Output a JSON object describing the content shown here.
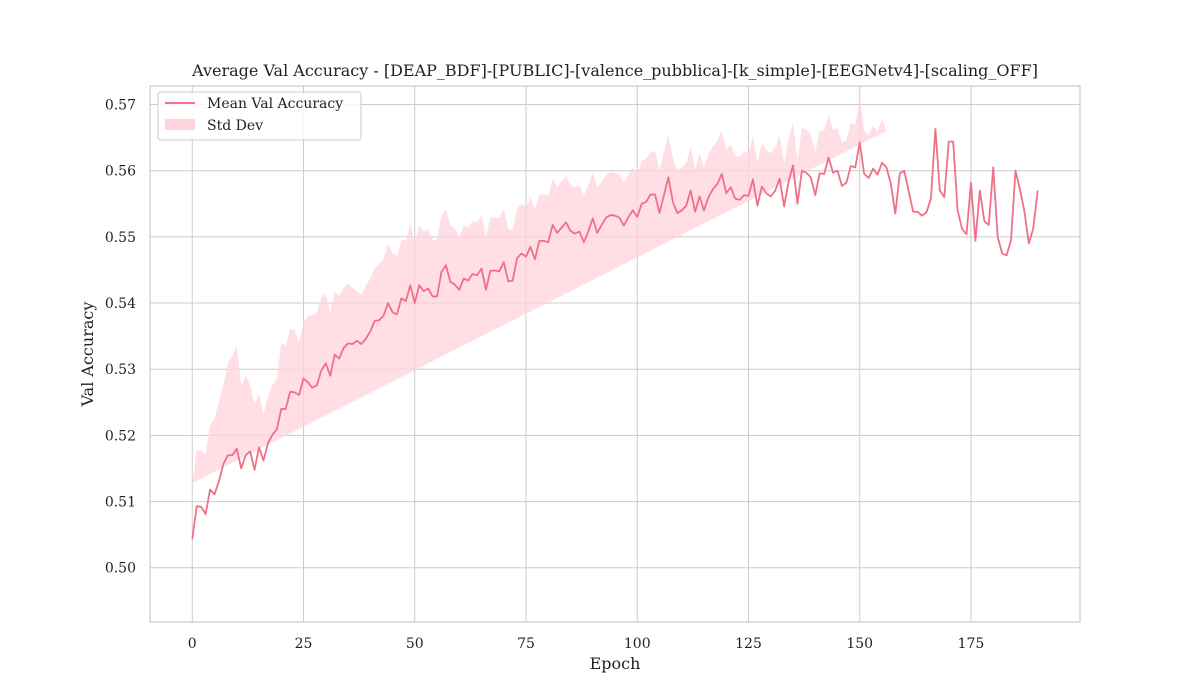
{
  "chart_data": {
    "type": "line",
    "title": "Average Val Accuracy - [DEAP_BDF]-[PUBLIC]-[valence_pubblica]-[k_simple]-[EEGNetv4]-[scaling_OFF]",
    "xlabel": "Epoch",
    "ylabel": "Val Accuracy",
    "xlim": [
      -9.5,
      199.5
    ],
    "ylim": [
      0.4918,
      0.5728
    ],
    "xticks": [
      0,
      25,
      50,
      75,
      100,
      125,
      150,
      175
    ],
    "yticks": [
      0.5,
      0.51,
      0.52,
      0.53,
      0.54,
      0.55,
      0.56,
      0.57
    ],
    "ytick_labels": [
      "0.50",
      "0.51",
      "0.52",
      "0.53",
      "0.54",
      "0.55",
      "0.56",
      "0.57"
    ],
    "grid": true,
    "legend_position": "top-left",
    "colors": {
      "line": "#f07088",
      "band": "#ffd4dc"
    },
    "series": [
      {
        "name": "Mean Val Accuracy",
        "kind": "line",
        "x": [
          0,
          1,
          2,
          3,
          4,
          5,
          6,
          7,
          8,
          9,
          10,
          11,
          12,
          13,
          14,
          15,
          16,
          17,
          18,
          19,
          20,
          21,
          22,
          23,
          24,
          25,
          26,
          27,
          28,
          29,
          30,
          31,
          32,
          33,
          34,
          35,
          36,
          37,
          38,
          39,
          40,
          41,
          42,
          43,
          44,
          45,
          46,
          47,
          48,
          49,
          50,
          51,
          52,
          53,
          54,
          55,
          56,
          57,
          58,
          59,
          60,
          61,
          62,
          63,
          64,
          65,
          66,
          67,
          68,
          69,
          70,
          71,
          72,
          73,
          74,
          75,
          76,
          77,
          78,
          79,
          80,
          81,
          82,
          83,
          84,
          85,
          86,
          87,
          88,
          89,
          90,
          91,
          92,
          93,
          94,
          95,
          96,
          97,
          98,
          99,
          100,
          101,
          102,
          103,
          104,
          105,
          106,
          107,
          108,
          109,
          110,
          111,
          112,
          113,
          114,
          115,
          116,
          117,
          118,
          119,
          120,
          121,
          122,
          123,
          124,
          125,
          126,
          127,
          128,
          129,
          130,
          131,
          132,
          133,
          134,
          135,
          136,
          137,
          138,
          139,
          140,
          141,
          142,
          143,
          144,
          145,
          146,
          147,
          148,
          149,
          150,
          151,
          152,
          153,
          154,
          155,
          156,
          157,
          158,
          159,
          160,
          161,
          162,
          163,
          164,
          165,
          166,
          167,
          168,
          169,
          170,
          171,
          172,
          173,
          174,
          175,
          176,
          177,
          178,
          179,
          180,
          181,
          182,
          183,
          184,
          185,
          186,
          187,
          188,
          189,
          190
        ],
        "y": [
          0.5043,
          0.5093,
          0.5092,
          0.5081,
          0.5118,
          0.5111,
          0.5131,
          0.5157,
          0.517,
          0.517,
          0.518,
          0.515,
          0.517,
          0.5176,
          0.5148,
          0.5182,
          0.5162,
          0.5188,
          0.5201,
          0.5209,
          0.524,
          0.524,
          0.5266,
          0.5265,
          0.5261,
          0.5286,
          0.528,
          0.5272,
          0.5276,
          0.5298,
          0.5309,
          0.529,
          0.5322,
          0.5316,
          0.5332,
          0.5339,
          0.5338,
          0.5343,
          0.5338,
          0.5346,
          0.5357,
          0.5373,
          0.5374,
          0.5381,
          0.54,
          0.5386,
          0.5383,
          0.5407,
          0.5403,
          0.5427,
          0.54,
          0.5427,
          0.5418,
          0.5422,
          0.541,
          0.541,
          0.5447,
          0.5457,
          0.5432,
          0.5428,
          0.542,
          0.5437,
          0.5434,
          0.5444,
          0.5442,
          0.5452,
          0.542,
          0.5449,
          0.5449,
          0.5448,
          0.5462,
          0.5433,
          0.5434,
          0.5468,
          0.5475,
          0.547,
          0.5485,
          0.5466,
          0.5494,
          0.5494,
          0.5492,
          0.5518,
          0.5506,
          0.5514,
          0.5522,
          0.5509,
          0.5505,
          0.5508,
          0.5492,
          0.5508,
          0.5528,
          0.5506,
          0.5518,
          0.5529,
          0.5533,
          0.5532,
          0.5529,
          0.5517,
          0.553,
          0.554,
          0.553,
          0.555,
          0.5553,
          0.5564,
          0.5564,
          0.5536,
          0.5563,
          0.559,
          0.5553,
          0.5536,
          0.554,
          0.5547,
          0.557,
          0.5538,
          0.5561,
          0.554,
          0.556,
          0.5572,
          0.558,
          0.5595,
          0.5566,
          0.5575,
          0.5558,
          0.5556,
          0.5563,
          0.5562,
          0.5587,
          0.5547,
          0.5576,
          0.5566,
          0.5561,
          0.557,
          0.5588,
          0.5546,
          0.5583,
          0.5608,
          0.555,
          0.56,
          0.5597,
          0.559,
          0.5563,
          0.5596,
          0.5595,
          0.562,
          0.5597,
          0.56,
          0.5577,
          0.5582,
          0.5607,
          0.5605,
          0.5643,
          0.5595,
          0.5589,
          0.5603,
          0.5594,
          0.5612,
          0.5605,
          0.558,
          0.5535,
          0.5596,
          0.56,
          0.5569,
          0.5538,
          0.5538,
          0.5532,
          0.5537,
          0.5558,
          0.5663,
          0.557,
          0.556,
          0.5644,
          0.5644,
          0.554,
          0.5512,
          0.5504,
          0.5582,
          0.5494,
          0.557,
          0.5524,
          0.5518,
          0.5605,
          0.55,
          0.5475,
          0.5472,
          0.5495,
          0.56,
          0.5572,
          0.5539,
          0.549,
          0.5513,
          0.557
        ]
      },
      {
        "name": "Std Dev",
        "kind": "band",
        "x_end": 158,
        "upper_offset": [
          0.0085,
          0.0085,
          0.0085,
          0.009,
          0.0098,
          0.0115,
          0.012,
          0.012,
          0.014,
          0.015,
          0.0155,
          0.0125,
          0.012,
          0.01,
          0.01,
          0.008,
          0.007,
          0.007,
          0.0075,
          0.0075,
          0.01,
          0.0095,
          0.0095,
          0.0095,
          0.008,
          0.0085,
          0.01,
          0.011,
          0.011,
          0.011,
          0.0105,
          0.0095,
          0.0095,
          0.0095,
          0.009,
          0.009,
          0.0085,
          0.0075,
          0.0075,
          0.008,
          0.008,
          0.008,
          0.0085,
          0.0085,
          0.009,
          0.009,
          0.0088,
          0.0088,
          0.0092,
          0.0092,
          0.009,
          0.009,
          0.009,
          0.009,
          0.0085,
          0.0085,
          0.0085,
          0.0085,
          0.0085,
          0.0085,
          0.008,
          0.008,
          0.008,
          0.008,
          0.008,
          0.008,
          0.008,
          0.008,
          0.008,
          0.008,
          0.008,
          0.008,
          0.0075,
          0.0075,
          0.0075,
          0.0075,
          0.0075,
          0.0075,
          0.007,
          0.007,
          0.007,
          0.007,
          0.007,
          0.007,
          0.007,
          0.007,
          0.007,
          0.007,
          0.007,
          0.007,
          0.007,
          0.007,
          0.0065,
          0.0065,
          0.0065,
          0.0065,
          0.0065,
          0.0065,
          0.0065,
          0.0065,
          0.0065,
          0.0065,
          0.0065,
          0.0065,
          0.0065,
          0.0065,
          0.0065,
          0.0065,
          0.0065,
          0.0065,
          0.0065,
          0.0065,
          0.0065,
          0.0065,
          0.0065,
          0.0065,
          0.0065,
          0.0065,
          0.0065,
          0.0065,
          0.0065,
          0.0065,
          0.0065,
          0.0065,
          0.0065,
          0.0065,
          0.0065,
          0.0065,
          0.0065,
          0.0065,
          0.0065,
          0.0065,
          0.0065,
          0.0065,
          0.0065,
          0.0065,
          0.0065,
          0.0065,
          0.0065,
          0.0065,
          0.0065,
          0.0065,
          0.0065,
          0.0065,
          0.0065,
          0.0065,
          0.0065,
          0.0065,
          0.0065,
          0.0065,
          0.0065,
          0.0065,
          0.0065,
          0.0065,
          0.0065,
          0.0065,
          0.0055
        ],
        "lower_offset": [
          0.009,
          0.009,
          0.0105,
          0.0115,
          0.012,
          0.012,
          0.01,
          0.009,
          0.009,
          0.0095,
          0.0095,
          0.0085,
          0.008,
          0.008,
          0.0085,
          0.0085,
          0.008,
          0.008,
          0.0085,
          0.009,
          0.0095,
          0.0095,
          0.009,
          0.009,
          0.009,
          0.009,
          0.0085,
          0.0085,
          0.0085,
          0.0085,
          0.0085,
          0.0085,
          0.0085,
          0.0085,
          0.0085,
          0.0085,
          0.0085,
          0.0085,
          0.0085,
          0.0085,
          0.008,
          0.008,
          0.008,
          0.008,
          0.008,
          0.008,
          0.008,
          0.008,
          0.008,
          0.008,
          0.0075,
          0.0075,
          0.0075,
          0.0075,
          0.0075,
          0.0075,
          0.0075,
          0.0075,
          0.0075,
          0.0075,
          0.007,
          0.007,
          0.007,
          0.007,
          0.007,
          0.007,
          0.007,
          0.007,
          0.007,
          0.007,
          0.007,
          0.007,
          0.007,
          0.007,
          0.007,
          0.007,
          0.007,
          0.007,
          0.0065,
          0.0065,
          0.0065,
          0.0065,
          0.0065,
          0.0065,
          0.0065,
          0.0065,
          0.0065,
          0.0065,
          0.0065,
          0.0065,
          0.0065,
          0.0065,
          0.0065,
          0.0065,
          0.0065,
          0.0065,
          0.0065,
          0.0065,
          0.0065,
          0.0065,
          0.0065,
          0.0065,
          0.0065,
          0.0065,
          0.0065,
          0.0065,
          0.0065,
          0.0065,
          0.0065,
          0.0065,
          0.0065,
          0.0065,
          0.0065,
          0.0065,
          0.0065,
          0.0065,
          0.0065,
          0.0065,
          0.0065,
          0.0065,
          0.0065,
          0.0065,
          0.0065,
          0.0065,
          0.0065,
          0.0065,
          0.0065,
          0.0065,
          0.0065,
          0.0065,
          0.0065,
          0.0065,
          0.0065,
          0.0065,
          0.0065,
          0.0065,
          0.0065,
          0.0065,
          0.0065,
          0.0065,
          0.0065,
          0.0065,
          0.0065,
          0.0065,
          0.0065,
          0.0065,
          0.0065,
          0.0065,
          0.0065,
          0.0065,
          0.0065,
          0.0065,
          0.0065,
          0.0065,
          0.0065,
          0.0065,
          0.0065,
          0.0065,
          0.0055
        ]
      }
    ]
  }
}
